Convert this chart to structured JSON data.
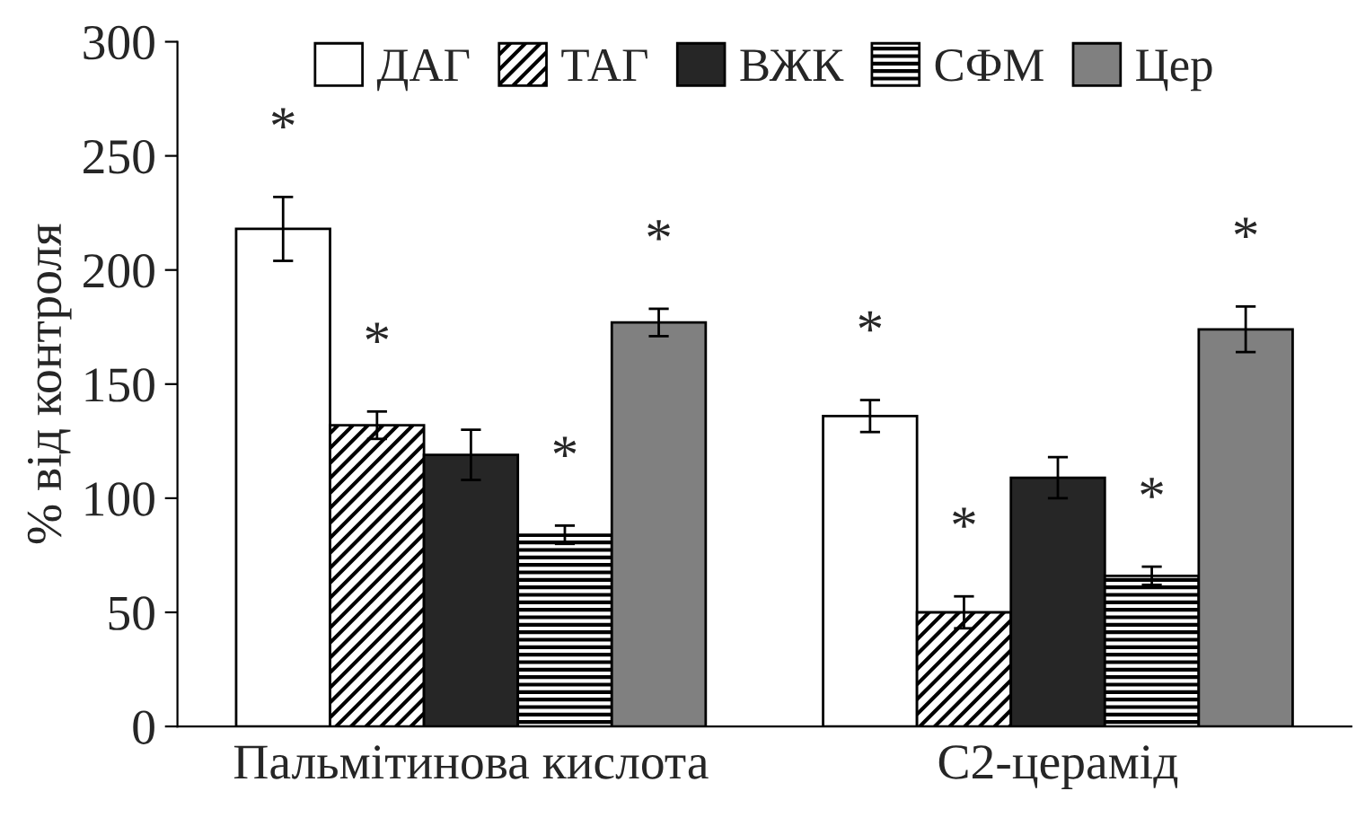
{
  "chart_data": {
    "type": "bar",
    "ylabel": "% від контроля",
    "categories": [
      "Пальмітинова кислота",
      "С2-церамід"
    ],
    "series": [
      {
        "name": "ДАГ",
        "color": "#ffffff",
        "values": [
          218,
          136
        ],
        "errors": [
          14,
          7
        ],
        "value_labels": [
          "*",
          "*"
        ]
      },
      {
        "name": "ТАГ",
        "color": "#000000",
        "values": [
          132,
          50
        ],
        "errors": [
          6,
          7
        ],
        "value_labels": [
          "*",
          "*"
        ]
      },
      {
        "name": "ВЖК",
        "color": "#262626",
        "values": [
          119,
          109
        ],
        "errors": [
          11,
          9
        ],
        "value_labels": [
          null,
          null
        ]
      },
      {
        "name": "СФМ",
        "color": "#000000",
        "values": [
          84,
          66
        ],
        "errors": [
          4,
          4
        ],
        "value_labels": [
          "*",
          "*"
        ]
      },
      {
        "name": "Цер",
        "color": "#808080",
        "values": [
          177,
          174
        ],
        "errors": [
          6,
          10
        ],
        "value_labels": [
          "*",
          "*"
        ]
      }
    ],
    "ylim": [
      0,
      300
    ],
    "yticks": [
      0,
      50,
      100,
      150,
      200,
      250,
      300
    ],
    "grid": false,
    "legend": "top"
  }
}
